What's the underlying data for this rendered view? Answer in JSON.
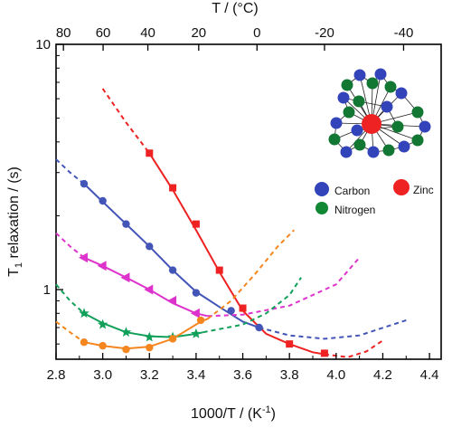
{
  "chart_data": {
    "type": "line",
    "xlabel": "1000/T / (K",
    "xlabel_sup": "-1",
    "xlabel_close": ")",
    "ylabel_main": "T",
    "ylabel_sub": "1",
    "ylabel_rest": " relaxation / (s)",
    "x2label": "T / (°C)",
    "xlim": [
      2.8,
      4.45
    ],
    "ylim": [
      0.52,
      10
    ],
    "yscale": "log",
    "x_ticks": [
      "2.8",
      "3.0",
      "3.2",
      "3.4",
      "3.6",
      "3.8",
      "4.0",
      "4.2",
      "4.4"
    ],
    "y_ticks": [
      {
        "label": "10",
        "value": 10
      },
      {
        "label": "1",
        "value": 1
      }
    ],
    "x2_ticks": [
      "80",
      "60",
      "40",
      "20",
      "0",
      "-20",
      "-40"
    ],
    "x2_celsius": [
      80,
      60,
      40,
      20,
      0,
      -20,
      -40
    ],
    "colors": {
      "red": "#ee2222",
      "blue": "#4455b8",
      "magenta": "#dd33cc",
      "green": "#11a05a",
      "orange": "#f5851f"
    },
    "series": [
      {
        "color": "red",
        "marker": "square",
        "points": [
          [
            3.2,
            3.6
          ],
          [
            3.3,
            2.6
          ],
          [
            3.4,
            1.85
          ],
          [
            3.5,
            1.2
          ],
          [
            3.6,
            0.84
          ],
          [
            3.8,
            0.6
          ],
          [
            3.95,
            0.55
          ]
        ],
        "fit_solid": [
          [
            3.2,
            3.6
          ],
          [
            3.3,
            2.55
          ],
          [
            3.4,
            1.75
          ],
          [
            3.5,
            1.18
          ],
          [
            3.6,
            0.82
          ],
          [
            3.7,
            0.66
          ],
          [
            3.8,
            0.6
          ],
          [
            3.9,
            0.555
          ],
          [
            3.95,
            0.545
          ]
        ],
        "fit_dash_before": [
          [
            3.0,
            6.6
          ],
          [
            3.1,
            4.8
          ],
          [
            3.2,
            3.6
          ]
        ],
        "fit_dash_after": [
          [
            3.95,
            0.545
          ],
          [
            4.05,
            0.53
          ],
          [
            4.13,
            0.56
          ],
          [
            4.2,
            0.62
          ]
        ]
      },
      {
        "color": "blue",
        "marker": "circle",
        "points": [
          [
            2.92,
            2.7
          ],
          [
            3.0,
            2.3
          ],
          [
            3.1,
            1.85
          ],
          [
            3.2,
            1.5
          ],
          [
            3.3,
            1.2
          ],
          [
            3.4,
            0.97
          ],
          [
            3.55,
            0.82
          ],
          [
            3.67,
            0.7
          ]
        ],
        "fit_solid": [
          [
            2.92,
            2.7
          ],
          [
            3.0,
            2.28
          ],
          [
            3.1,
            1.85
          ],
          [
            3.2,
            1.5
          ],
          [
            3.3,
            1.2
          ],
          [
            3.4,
            0.98
          ],
          [
            3.5,
            0.85
          ],
          [
            3.6,
            0.74
          ],
          [
            3.67,
            0.7
          ]
        ],
        "fit_dash_before": [
          [
            2.8,
            3.4
          ],
          [
            2.86,
            3.0
          ],
          [
            2.92,
            2.7
          ]
        ],
        "fit_dash_after": [
          [
            3.67,
            0.7
          ],
          [
            3.8,
            0.65
          ],
          [
            3.95,
            0.63
          ],
          [
            4.1,
            0.65
          ],
          [
            4.3,
            0.75
          ]
        ]
      },
      {
        "color": "magenta",
        "marker": "triangle-left",
        "points": [
          [
            2.92,
            1.35
          ],
          [
            3.0,
            1.25
          ],
          [
            3.1,
            1.12
          ],
          [
            3.2,
            1.0
          ],
          [
            3.3,
            0.9
          ],
          [
            3.4,
            0.8
          ]
        ],
        "fit_solid": [
          [
            2.92,
            1.35
          ],
          [
            3.0,
            1.25
          ],
          [
            3.1,
            1.12
          ],
          [
            3.2,
            1.0
          ],
          [
            3.3,
            0.88
          ],
          [
            3.4,
            0.8
          ],
          [
            3.45,
            0.78
          ]
        ],
        "fit_dash_before": [
          [
            2.8,
            1.7
          ],
          [
            2.86,
            1.5
          ],
          [
            2.92,
            1.35
          ]
        ],
        "fit_dash_after": [
          [
            3.45,
            0.78
          ],
          [
            3.6,
            0.79
          ],
          [
            3.8,
            0.86
          ],
          [
            4.0,
            1.05
          ],
          [
            4.1,
            1.35
          ]
        ]
      },
      {
        "color": "green",
        "marker": "star",
        "points": [
          [
            2.92,
            0.8
          ],
          [
            3.0,
            0.72
          ],
          [
            3.1,
            0.67
          ],
          [
            3.2,
            0.64
          ],
          [
            3.3,
            0.64
          ],
          [
            3.4,
            0.66
          ]
        ],
        "fit_solid": [
          [
            2.92,
            0.8
          ],
          [
            3.0,
            0.73
          ],
          [
            3.1,
            0.67
          ],
          [
            3.2,
            0.645
          ],
          [
            3.3,
            0.64
          ],
          [
            3.4,
            0.66
          ],
          [
            3.43,
            0.67
          ]
        ],
        "fit_dash_before": [
          [
            2.8,
            1.05
          ],
          [
            2.86,
            0.9
          ],
          [
            2.92,
            0.8
          ]
        ],
        "fit_dash_after": [
          [
            3.43,
            0.67
          ],
          [
            3.6,
            0.72
          ],
          [
            3.7,
            0.8
          ],
          [
            3.8,
            0.95
          ],
          [
            3.85,
            1.12
          ]
        ]
      },
      {
        "color": "orange",
        "marker": "circle",
        "points": [
          [
            2.92,
            0.61
          ],
          [
            3.0,
            0.59
          ],
          [
            3.1,
            0.57
          ],
          [
            3.2,
            0.58
          ],
          [
            3.3,
            0.63
          ],
          [
            3.42,
            0.75
          ]
        ],
        "fit_solid": [
          [
            2.92,
            0.61
          ],
          [
            3.0,
            0.59
          ],
          [
            3.1,
            0.575
          ],
          [
            3.2,
            0.585
          ],
          [
            3.3,
            0.63
          ],
          [
            3.42,
            0.74
          ],
          [
            3.45,
            0.76
          ]
        ],
        "fit_dash_before": [
          [
            2.8,
            0.74
          ],
          [
            2.86,
            0.67
          ],
          [
            2.92,
            0.61
          ]
        ],
        "fit_dash_after": [
          [
            3.45,
            0.76
          ],
          [
            3.55,
            0.9
          ],
          [
            3.65,
            1.15
          ],
          [
            3.75,
            1.5
          ],
          [
            3.82,
            1.75
          ]
        ]
      }
    ],
    "legend": [
      {
        "label": "Carbon",
        "color": "#3344bb"
      },
      {
        "label": "Zinc",
        "color": "#ee2222"
      },
      {
        "label": "Nitrogen",
        "color": "#118833"
      }
    ],
    "molecule": {
      "zinc_color": "#ee2222",
      "nitrogen_color": "#117733",
      "carbon_color": "#3344bb"
    }
  }
}
